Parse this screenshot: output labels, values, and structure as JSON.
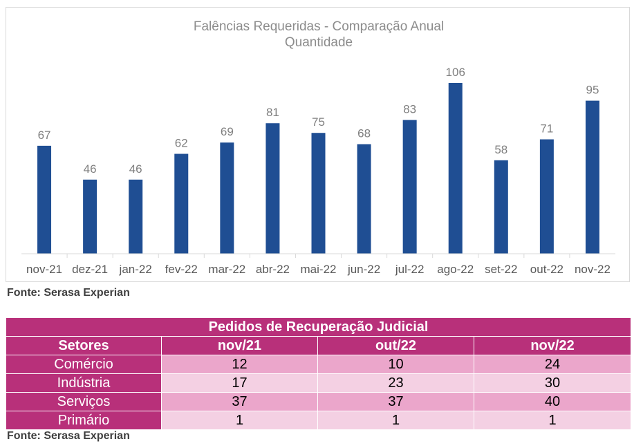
{
  "chart_data": {
    "type": "bar",
    "title": "Falências Requeridas - Comparação Anual",
    "subtitle": "Quantidade",
    "categories": [
      "nov-21",
      "dez-21",
      "jan-22",
      "fev-22",
      "mar-22",
      "abr-22",
      "mai-22",
      "jun-22",
      "jul-22",
      "ago-22",
      "set-22",
      "out-22",
      "nov-22"
    ],
    "values": [
      67,
      46,
      46,
      62,
      69,
      81,
      75,
      68,
      83,
      106,
      58,
      71,
      95
    ],
    "ylim": [
      0,
      115
    ],
    "grid": false,
    "legend": "none",
    "bar_color": "#1f4e93"
  },
  "sources": {
    "chart": "Fonte: Serasa Experian",
    "table": "Fonte: Serasa Experian"
  },
  "table": {
    "title": "Pedidos de Recuperação Judicial",
    "headers": [
      "Setores",
      "nov/21",
      "out/22",
      "nov/22"
    ],
    "rows": [
      [
        "Comércio",
        "12",
        "10",
        "24"
      ],
      [
        "Indústria",
        "17",
        "23",
        "30"
      ],
      [
        "Serviços",
        "37",
        "37",
        "40"
      ],
      [
        "Primário",
        "1",
        "1",
        "1"
      ]
    ],
    "header_color": "#b8307a",
    "row_colors": [
      "#eba6cb",
      "#f4d0e3"
    ]
  }
}
